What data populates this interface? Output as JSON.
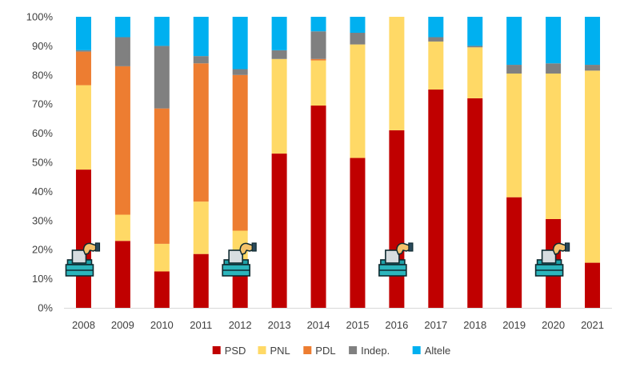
{
  "chart_data": {
    "type": "bar",
    "stacked": true,
    "normalized_percent": true,
    "categories": [
      "2008",
      "2009",
      "2010",
      "2011",
      "2012",
      "2013",
      "2014",
      "2015",
      "2016",
      "2017",
      "2018",
      "2019",
      "2020",
      "2021"
    ],
    "series": [
      {
        "name": "PSD",
        "color": "#C00000",
        "values": [
          47.5,
          23,
          12.5,
          18.5,
          11,
          53,
          69.5,
          51.5,
          61,
          75,
          72,
          38,
          30.5,
          15.5
        ]
      },
      {
        "name": "PNL",
        "color": "#FFD966",
        "values": [
          29,
          9,
          9.5,
          18,
          15.5,
          32.5,
          15.5,
          39,
          39,
          16.5,
          17.5,
          42.5,
          50,
          66
        ]
      },
      {
        "name": "PDL",
        "color": "#ED7D31",
        "values": [
          11.5,
          51,
          46.5,
          47.5,
          53.5,
          0,
          0.5,
          0,
          0,
          0,
          0,
          0,
          0,
          0
        ]
      },
      {
        "name": "Indep.",
        "color": "#808080",
        "values": [
          0.5,
          10,
          21.5,
          2.5,
          2,
          3,
          9.5,
          4,
          0,
          1.5,
          0.5,
          3,
          3.5,
          2
        ]
      },
      {
        "name": "Altele",
        "color": "#00B0F0",
        "values": [
          11.5,
          7,
          10,
          13.5,
          18,
          11.5,
          5,
          5.5,
          0,
          7,
          10,
          16.5,
          16,
          16.5
        ]
      }
    ],
    "ylim": [
      0,
      100
    ],
    "y_ticks": [
      "0%",
      "10%",
      "20%",
      "30%",
      "40%",
      "50%",
      "60%",
      "70%",
      "80%",
      "90%",
      "100%"
    ],
    "grid": false,
    "legend": "bottom",
    "annotations": {
      "icon": "ballot-box-icon",
      "years": [
        "2008",
        "2012",
        "2016",
        "2020"
      ]
    }
  }
}
